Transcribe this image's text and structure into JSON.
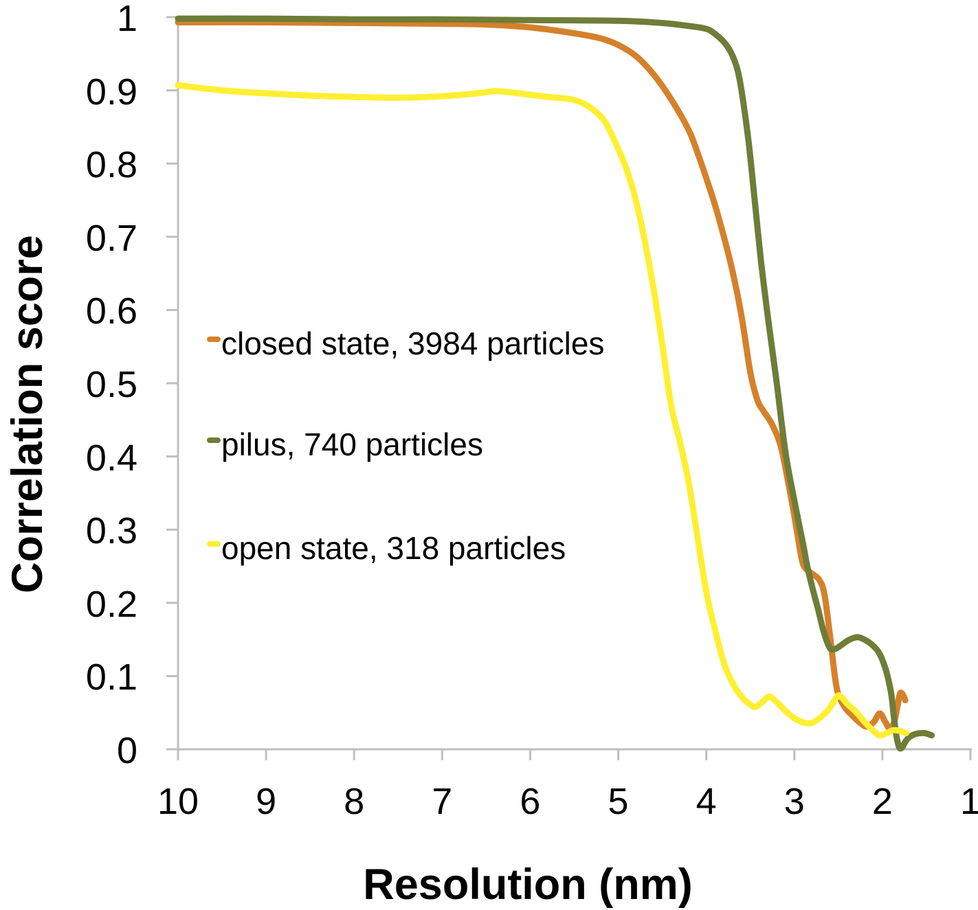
{
  "figure": {
    "background": "#ffffff",
    "text_color": "#000000",
    "axis_color": "#bfbfbf"
  },
  "legend": {
    "items": [
      {
        "label": "closed state, 3984 particles",
        "color": "#d5812c"
      },
      {
        "label": "pilus, 740 particles",
        "color": "#6e7d38"
      },
      {
        "label": "open state, 318 particles",
        "color": "#ffef33"
      }
    ]
  },
  "chart_data": {
    "type": "line",
    "title": "",
    "xlabel": "Resolution (nm)",
    "ylabel": "Correlation score",
    "grid": false,
    "legend_position": "inside-left",
    "axis_color": "#bfbfbf",
    "x_axis": {
      "min": 1,
      "max": 10,
      "reversed": true,
      "ticks": [
        10,
        9,
        8,
        7,
        6,
        5,
        4,
        3,
        2,
        1
      ],
      "tick_labels": [
        "10",
        "9",
        "8",
        "7",
        "6",
        "5",
        "4",
        "3",
        "2",
        "1"
      ]
    },
    "y_axis": {
      "min": 0,
      "max": 1,
      "ticks": [
        1,
        0.9,
        0.8,
        0.7,
        0.6,
        0.5,
        0.4,
        0.3,
        0.2,
        0.1,
        0
      ],
      "tick_labels": [
        "1",
        "0.9",
        "0.8",
        "0.7",
        "0.6",
        "0.5",
        "0.4",
        "0.3",
        "0.2",
        "0.1",
        "0"
      ]
    },
    "series": [
      {
        "id": "closed-state",
        "name": "closed state, 3984 particles",
        "color": "#d5812c",
        "points": [
          [
            10,
            0.993
          ],
          [
            9,
            0.993
          ],
          [
            8,
            0.992
          ],
          [
            7,
            0.991
          ],
          [
            6.5,
            0.99
          ],
          [
            6,
            0.986
          ],
          [
            5.5,
            0.978
          ],
          [
            5.2,
            0.971
          ],
          [
            5,
            0.962
          ],
          [
            4.8,
            0.947
          ],
          [
            4.6,
            0.922
          ],
          [
            4.4,
            0.888
          ],
          [
            4.2,
            0.846
          ],
          [
            4.1,
            0.815
          ],
          [
            4,
            0.78
          ],
          [
            3.9,
            0.743
          ],
          [
            3.8,
            0.7
          ],
          [
            3.7,
            0.652
          ],
          [
            3.6,
            0.592
          ],
          [
            3.5,
            0.515
          ],
          [
            3.42,
            0.477
          ],
          [
            3.35,
            0.462
          ],
          [
            3.25,
            0.443
          ],
          [
            3.15,
            0.412
          ],
          [
            3.05,
            0.352
          ],
          [
            2.98,
            0.305
          ],
          [
            2.92,
            0.262
          ],
          [
            2.88,
            0.248
          ],
          [
            2.8,
            0.24
          ],
          [
            2.72,
            0.232
          ],
          [
            2.66,
            0.213
          ],
          [
            2.6,
            0.16
          ],
          [
            2.54,
            0.1
          ],
          [
            2.5,
            0.075
          ],
          [
            2.43,
            0.058
          ],
          [
            2.35,
            0.047
          ],
          [
            2.26,
            0.037
          ],
          [
            2.18,
            0.031
          ],
          [
            2.1,
            0.037
          ],
          [
            2.03,
            0.049
          ],
          [
            1.97,
            0.038
          ],
          [
            1.92,
            0.029
          ],
          [
            1.87,
            0.036
          ],
          [
            1.83,
            0.058
          ],
          [
            1.8,
            0.076
          ],
          [
            1.77,
            0.075
          ],
          [
            1.74,
            0.067
          ]
        ]
      },
      {
        "id": "pilus",
        "name": "pilus, 740 particles",
        "color": "#6e7d38",
        "points": [
          [
            10,
            0.998
          ],
          [
            9,
            0.998
          ],
          [
            8,
            0.997
          ],
          [
            7,
            0.997
          ],
          [
            6,
            0.996
          ],
          [
            5,
            0.995
          ],
          [
            4.5,
            0.992
          ],
          [
            4.2,
            0.988
          ],
          [
            4,
            0.984
          ],
          [
            3.9,
            0.977
          ],
          [
            3.8,
            0.966
          ],
          [
            3.72,
            0.952
          ],
          [
            3.65,
            0.93
          ],
          [
            3.6,
            0.9
          ],
          [
            3.52,
            0.83
          ],
          [
            3.45,
            0.75
          ],
          [
            3.38,
            0.668
          ],
          [
            3.3,
            0.59
          ],
          [
            3.2,
            0.5
          ],
          [
            3.1,
            0.405
          ],
          [
            3,
            0.34
          ],
          [
            2.9,
            0.28
          ],
          [
            2.86,
            0.254
          ],
          [
            2.8,
            0.223
          ],
          [
            2.73,
            0.191
          ],
          [
            2.67,
            0.162
          ],
          [
            2.6,
            0.139
          ],
          [
            2.54,
            0.137
          ],
          [
            2.47,
            0.142
          ],
          [
            2.4,
            0.148
          ],
          [
            2.33,
            0.152
          ],
          [
            2.27,
            0.153
          ],
          [
            2.19,
            0.149
          ],
          [
            2.11,
            0.142
          ],
          [
            2.05,
            0.134
          ],
          [
            2,
            0.122
          ],
          [
            1.95,
            0.104
          ],
          [
            1.9,
            0.076
          ],
          [
            1.87,
            0.045
          ],
          [
            1.84,
            0.018
          ],
          [
            1.81,
            0.003
          ],
          [
            1.78,
            0.002
          ],
          [
            1.74,
            0.01
          ],
          [
            1.7,
            0.016
          ],
          [
            1.62,
            0.021
          ],
          [
            1.52,
            0.022
          ],
          [
            1.44,
            0.019
          ]
        ]
      },
      {
        "id": "open-state",
        "name": "open state, 318 particles",
        "color": "#ffef33",
        "points": [
          [
            10,
            0.907
          ],
          [
            9.5,
            0.9
          ],
          [
            9,
            0.896
          ],
          [
            8.5,
            0.893
          ],
          [
            8,
            0.891
          ],
          [
            7.5,
            0.89
          ],
          [
            7,
            0.892
          ],
          [
            6.6,
            0.896
          ],
          [
            6.4,
            0.899
          ],
          [
            6.2,
            0.897
          ],
          [
            6,
            0.894
          ],
          [
            5.8,
            0.891
          ],
          [
            5.6,
            0.889
          ],
          [
            5.45,
            0.885
          ],
          [
            5.3,
            0.875
          ],
          [
            5.15,
            0.857
          ],
          [
            5,
            0.82
          ],
          [
            4.9,
            0.79
          ],
          [
            4.8,
            0.75
          ],
          [
            4.7,
            0.695
          ],
          [
            4.6,
            0.63
          ],
          [
            4.5,
            0.553
          ],
          [
            4.4,
            0.47
          ],
          [
            4.3,
            0.42
          ],
          [
            4.2,
            0.365
          ],
          [
            4.1,
            0.29
          ],
          [
            4,
            0.215
          ],
          [
            3.9,
            0.163
          ],
          [
            3.8,
            0.118
          ],
          [
            3.7,
            0.09
          ],
          [
            3.6,
            0.072
          ],
          [
            3.5,
            0.061
          ],
          [
            3.44,
            0.058
          ],
          [
            3.35,
            0.066
          ],
          [
            3.28,
            0.072
          ],
          [
            3.18,
            0.062
          ],
          [
            3.08,
            0.05
          ],
          [
            2.98,
            0.041
          ],
          [
            2.88,
            0.036
          ],
          [
            2.8,
            0.036
          ],
          [
            2.72,
            0.042
          ],
          [
            2.62,
            0.053
          ],
          [
            2.52,
            0.071
          ],
          [
            2.48,
            0.073
          ],
          [
            2.4,
            0.062
          ],
          [
            2.3,
            0.051
          ],
          [
            2.2,
            0.037
          ],
          [
            2.1,
            0.025
          ],
          [
            2.03,
            0.019
          ],
          [
            1.95,
            0.022
          ],
          [
            1.88,
            0.026
          ],
          [
            1.8,
            0.025
          ],
          [
            1.73,
            0.022
          ]
        ]
      }
    ]
  }
}
